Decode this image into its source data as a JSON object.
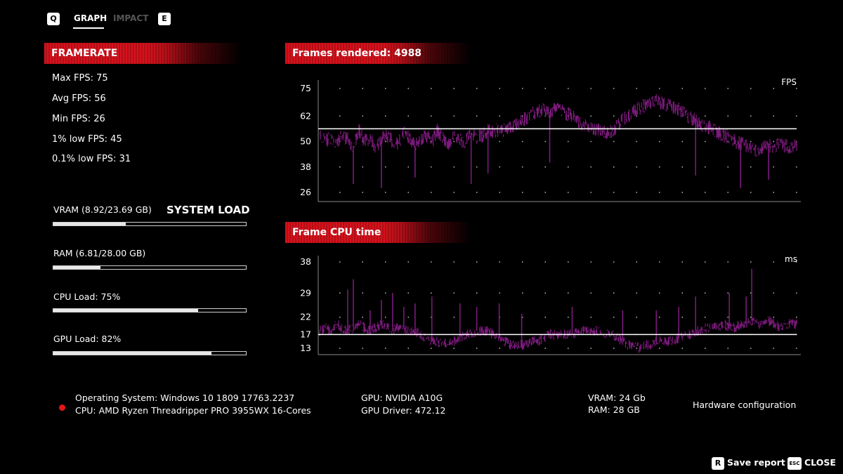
{
  "tabs": {
    "left_key": "Q",
    "items": [
      {
        "label": "GRAPH",
        "active": true
      },
      {
        "label": "IMPACT",
        "active": false
      }
    ],
    "right_key": "E"
  },
  "framerate": {
    "title": "FRAMERATE",
    "stats": [
      "Max FPS: 75",
      "Avg FPS: 56",
      "Min FPS: 26",
      "1% low FPS: 45",
      "0.1% low FPS: 31"
    ]
  },
  "system_load": {
    "title": "SYSTEM LOAD",
    "bars": [
      {
        "label": "VRAM (8.92/23.69 GB)",
        "fraction": 0.3765
      },
      {
        "label": "RAM (6.81/28.00 GB)",
        "fraction": 0.2432
      },
      {
        "label": "CPU Load: 75%",
        "fraction": 0.75
      },
      {
        "label": "GPU Load: 82%",
        "fraction": 0.82
      }
    ]
  },
  "hardware": {
    "os": "Operating System: Windows 10 1809 17763.2237",
    "cpu": "CPU: AMD Ryzen Threadripper PRO 3955WX 16-Cores",
    "gpu": "GPU: NVIDIA A10G",
    "gpu_driver": "GPU Driver: 472.12",
    "vram": "VRAM: 24 Gb",
    "ram": "RAM: 28 GB",
    "config_link": "Hardware configuration"
  },
  "footer": {
    "save_key": "R",
    "save_label": "Save report",
    "close_key": "ESC",
    "close_label": "CLOSE"
  },
  "colors": {
    "accent_red": "#d8121c",
    "series_purple": "#7a1a7a",
    "average_line": "#ffffff"
  },
  "chart_data": [
    {
      "type": "line",
      "title": "Frames rendered: 4988",
      "unit": "FPS",
      "frames": 4988,
      "yticks": [
        75,
        62,
        50,
        38,
        26
      ],
      "ylim": [
        26,
        75
      ],
      "average": 56,
      "series": [
        {
          "values": [
            54,
            50,
            52,
            49,
            53,
            51,
            48,
            55,
            50,
            52,
            47,
            51,
            53,
            50,
            49,
            54,
            52,
            48,
            51,
            53,
            50,
            55,
            52,
            49,
            53,
            51,
            50,
            54,
            52,
            53,
            55,
            54,
            56,
            55,
            57,
            58,
            60,
            61,
            63,
            64,
            65,
            64,
            66,
            65,
            63,
            62,
            60,
            58,
            57,
            56,
            55,
            54,
            55,
            57,
            60,
            62,
            64,
            66,
            67,
            68,
            69,
            68,
            67,
            66,
            65,
            63,
            61,
            60,
            58,
            57,
            56,
            54,
            53,
            52,
            50,
            49,
            48,
            47,
            46,
            47,
            48,
            47,
            49,
            48,
            47,
            48
          ]
        }
      ],
      "dips": [
        [
          6,
          30
        ],
        [
          11,
          28
        ],
        [
          17,
          33
        ],
        [
          27,
          30
        ],
        [
          30,
          35
        ],
        [
          41,
          40
        ],
        [
          67,
          34
        ],
        [
          75,
          28
        ],
        [
          80,
          32
        ]
      ]
    },
    {
      "type": "line",
      "title": "Frame CPU time",
      "unit": "ms",
      "yticks": [
        38,
        29,
        22,
        17,
        13
      ],
      "ylim": [
        13,
        38
      ],
      "average": 17,
      "series": [
        {
          "values": [
            18,
            19,
            18,
            20,
            19,
            18,
            19,
            20,
            19,
            18,
            19,
            20,
            19,
            18,
            19,
            19,
            18,
            18,
            17,
            16,
            15,
            15,
            14,
            15,
            15,
            16,
            17,
            17,
            18,
            18,
            18,
            17,
            16,
            15,
            14,
            14,
            14,
            14,
            15,
            15,
            16,
            17,
            17,
            17,
            17,
            17,
            18,
            18,
            18,
            18,
            18,
            17,
            17,
            16,
            15,
            14,
            14,
            13,
            14,
            14,
            15,
            15,
            15,
            15,
            16,
            17,
            17,
            18,
            18,
            19,
            19,
            19,
            20,
            19,
            19,
            20,
            20,
            21,
            20,
            20,
            21,
            20,
            19,
            20,
            20,
            20
          ]
        }
      ],
      "spikes": [
        [
          5,
          30
        ],
        [
          6,
          33
        ],
        [
          9,
          24
        ],
        [
          11,
          27
        ],
        [
          13,
          29
        ],
        [
          15,
          25
        ],
        [
          17,
          26
        ],
        [
          20,
          28
        ],
        [
          25,
          26
        ],
        [
          28,
          25
        ],
        [
          32,
          26
        ],
        [
          36,
          23
        ],
        [
          45,
          25
        ],
        [
          54,
          24
        ],
        [
          60,
          24
        ],
        [
          64,
          25
        ],
        [
          67,
          28
        ],
        [
          73,
          29
        ],
        [
          76,
          28
        ],
        [
          77,
          36
        ]
      ]
    }
  ]
}
